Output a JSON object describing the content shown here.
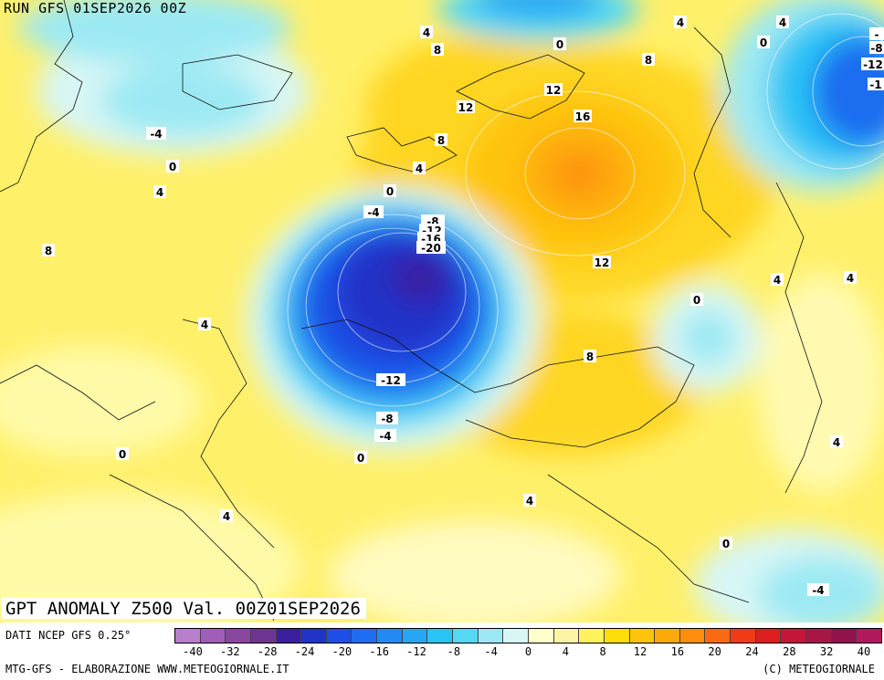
{
  "header": {
    "run_label": "RUN GFS 01SEP2026 00Z",
    "map_title": "GPT ANOMALY Z500 Val. 00Z01SEP2026"
  },
  "legend": {
    "source": "DATI NCEP GFS 0.25°",
    "colors": [
      "#b77fcc",
      "#9e5fba",
      "#87479f",
      "#6d3592",
      "#3a1fa0",
      "#2233c8",
      "#1d4fe6",
      "#1f6df0",
      "#228af3",
      "#28a6f4",
      "#2bc3f5",
      "#54d8f4",
      "#9ce9f3",
      "#d7f6f5",
      "#ffffcc",
      "#fff4a3",
      "#fff25c",
      "#fedd0a",
      "#fec30a",
      "#fea90a",
      "#fd8d0c",
      "#f96a12",
      "#ef3c16",
      "#dd1f20",
      "#c3173a",
      "#a81646",
      "#92124b",
      "#b0195c"
    ],
    "ticks": [
      "-40",
      "-32",
      "-28",
      "-24",
      "-20",
      "-16",
      "-12",
      "-8",
      "-4",
      "0",
      "4",
      "8",
      "12",
      "16",
      "20",
      "24",
      "28",
      "32",
      "40"
    ]
  },
  "contour_labels": [
    "4",
    "8",
    "0",
    "8",
    "4",
    "-4",
    "0",
    "12",
    "12",
    "16",
    "8",
    "4",
    "-4",
    "0",
    "4",
    "-8",
    "-12",
    "-16",
    "-20",
    "8",
    "12",
    "4",
    "4",
    "0",
    "4",
    "4",
    "8",
    "-12",
    "-8",
    "-4",
    "0",
    "0",
    "4",
    "4",
    "0",
    "-4",
    "-12",
    "-8",
    "-1"
  ],
  "footer": {
    "credit_left": "MTG-GFS - ELABORAZIONE WWW.METEOGIORNALE.IT",
    "credit_right": "(C) METEOGIORNALE"
  }
}
